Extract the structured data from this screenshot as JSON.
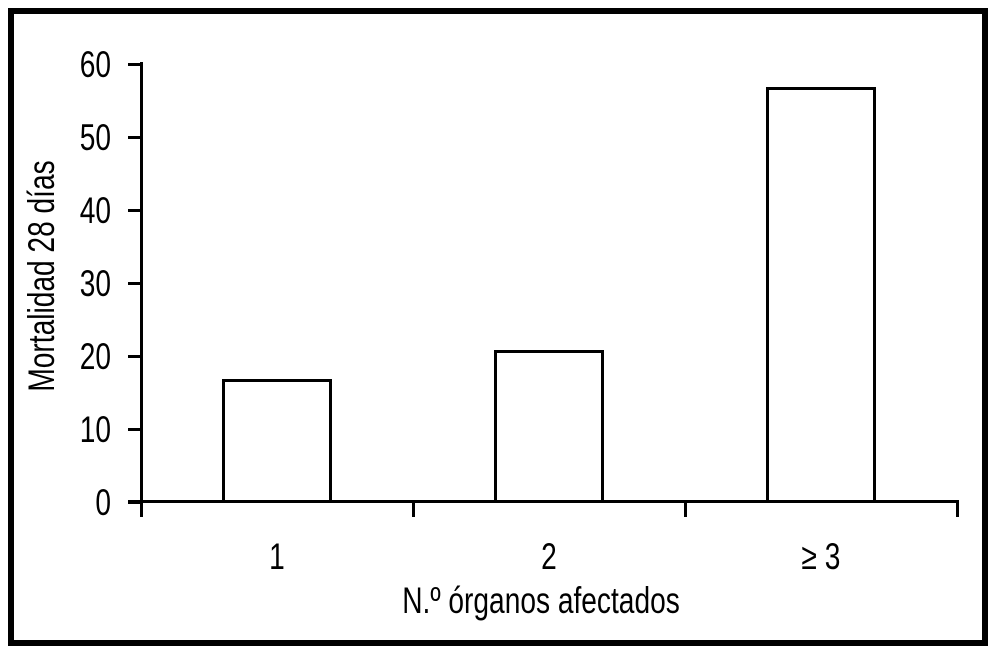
{
  "chart_data": {
    "type": "bar",
    "title": "",
    "categories": [
      "1",
      "2",
      "≥ 3"
    ],
    "values": [
      17,
      21,
      57
    ],
    "xlabel": "N.º órganos afectados",
    "ylabel": "Mortalidad 28 días",
    "ylim": [
      0,
      60
    ],
    "yticks": [
      0,
      10,
      20,
      30,
      40,
      50,
      60
    ],
    "grid": false,
    "legend_position": "none",
    "bar_fill": "#ffffff",
    "bar_border": "#000000",
    "axis_color": "#000000",
    "background": "#ffffff",
    "frame_border": "#000000"
  }
}
